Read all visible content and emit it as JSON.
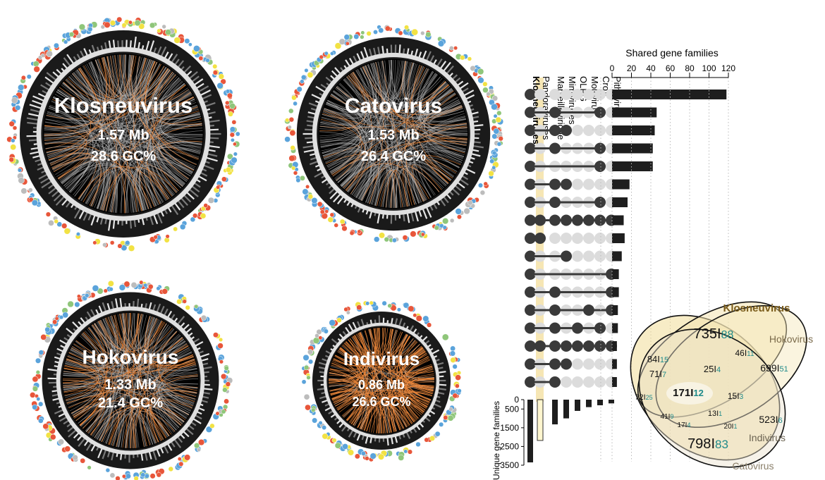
{
  "genomes": [
    {
      "id": "klosneuvirus",
      "name": "Klosneuvirus",
      "size": "1.57 Mb",
      "gc": "28.6 GC%"
    },
    {
      "id": "catovirus",
      "name": "Catovirus",
      "size": "1.53 Mb",
      "gc": "26.4 GC%"
    },
    {
      "id": "hokovirus",
      "name": "Hokovirus",
      "size": "1.33 Mb",
      "gc": "21.4 GC%"
    },
    {
      "id": "indivirus",
      "name": "Indivirus",
      "size": "0.86 Mb",
      "gc": "26.6 GC%"
    }
  ],
  "upset": {
    "sets": [
      "Klosneuviruses",
      "Pandoraviruses",
      "Marseilleviridae",
      "Mimiviruses",
      "OLPG",
      "Mollivirus",
      "CroV",
      "Pithovirus"
    ],
    "highlight_color": "#f6e6b4",
    "bar_axis": {
      "title": "Shared gene families",
      "ticks": [
        "0",
        "20",
        "40",
        "60",
        "80",
        "100",
        "120"
      ],
      "max": 120
    },
    "unique_axis": {
      "title": "Unique gene families",
      "ticks": [
        "0",
        "500",
        "1500",
        "2500",
        "3500"
      ]
    },
    "intersections": [
      {
        "value": 118,
        "members": [
          0
        ]
      },
      {
        "value": 46,
        "members": [
          0,
          2,
          6
        ]
      },
      {
        "value": 44,
        "members": [
          0,
          2,
          3
        ]
      },
      {
        "value": 42,
        "members": [
          0,
          2,
          6
        ]
      },
      {
        "value": 42,
        "members": [
          0,
          6
        ]
      },
      {
        "value": 18,
        "members": [
          0,
          2,
          3
        ]
      },
      {
        "value": 16,
        "members": [
          0,
          2,
          6
        ]
      },
      {
        "value": 12,
        "members": [
          0,
          1,
          2,
          3,
          4,
          5,
          6,
          7
        ]
      },
      {
        "value": 13,
        "members": [
          0,
          1
        ]
      },
      {
        "value": 10,
        "members": [
          0,
          3
        ]
      },
      {
        "value": 7,
        "members": [
          0,
          7
        ]
      },
      {
        "value": 7,
        "members": [
          0,
          2,
          7
        ]
      },
      {
        "value": 6,
        "members": [
          0,
          2,
          5,
          7
        ]
      },
      {
        "value": 6,
        "members": [
          0,
          2,
          4,
          6
        ]
      },
      {
        "value": 5,
        "members": [
          0,
          1,
          2,
          3,
          4,
          5,
          6,
          7
        ]
      },
      {
        "value": 5,
        "members": [
          0,
          2,
          3
        ]
      },
      {
        "value": 5,
        "members": [
          0,
          2
        ]
      }
    ],
    "unique_values": [
      3350,
      2180,
      1320,
      1000,
      600,
      400,
      300,
      200
    ]
  },
  "venn": {
    "labels": {
      "klosneuvirus": "Klosneuvirus",
      "hokovirus": "Hokovirus",
      "indivirus": "Indivirus",
      "catovirus": "Catovirus"
    },
    "regions": [
      {
        "id": "k_only",
        "a": "735",
        "b": "88"
      },
      {
        "id": "kh",
        "a": "46",
        "b": "11"
      },
      {
        "id": "h_only",
        "a": "699",
        "b": "51"
      },
      {
        "id": "kc",
        "a": "84",
        "b": "15"
      },
      {
        "id": "kch",
        "a": "71",
        "b": "7"
      },
      {
        "id": "khi",
        "a": "25",
        "b": "4"
      },
      {
        "id": "c_lone",
        "a": "72",
        "b": "25"
      },
      {
        "id": "all",
        "a": "171",
        "b": "12"
      },
      {
        "id": "hi",
        "a": "15",
        "b": "3"
      },
      {
        "id": "cki",
        "a": "41",
        "b": "9"
      },
      {
        "id": "cki2",
        "a": "13",
        "b": "1"
      },
      {
        "id": "ci",
        "a": "17",
        "b": "4"
      },
      {
        "id": "ci2",
        "a": "20",
        "b": "1"
      },
      {
        "id": "i_only",
        "a": "523",
        "b": "6"
      },
      {
        "id": "cat_only",
        "a": "798",
        "b": "83"
      }
    ]
  }
}
